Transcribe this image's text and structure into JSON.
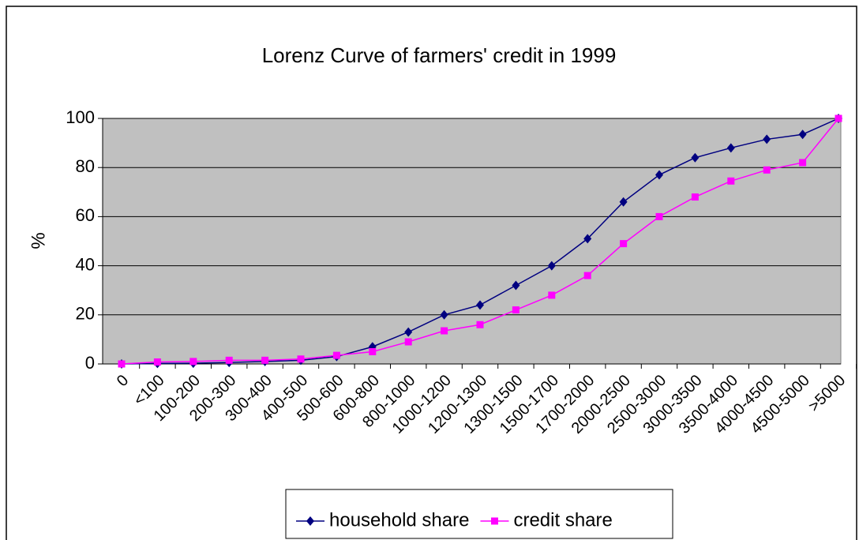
{
  "chart_data": {
    "type": "line",
    "title": "Lorenz Curve of farmers' credit in 1999",
    "y_label": "%",
    "categories": [
      "0",
      "<100",
      "100-200",
      "200-300",
      "300-400",
      "400-500",
      "500-600",
      "600-800",
      "800-1000",
      "1000-1200",
      "1200-1300",
      "1300-1500",
      "1500-1700",
      "1700-2000",
      "2000-2500",
      "2500-3000",
      "3000-3500",
      "3500-4000",
      "4000-4500",
      "4500-5000",
      ">5000"
    ],
    "series": [
      {
        "name": "household share",
        "color": "#000080",
        "marker": "diamond",
        "values": [
          0,
          0.2,
          0.3,
          0.6,
          1,
          1.5,
          3,
          7,
          13,
          20,
          24,
          32,
          40,
          51,
          66,
          77,
          84,
          88,
          91.5,
          93.5,
          100
        ]
      },
      {
        "name": "credit share",
        "color": "#ff00ff",
        "marker": "square",
        "values": [
          0,
          0.8,
          1,
          1.5,
          1.5,
          2,
          3.5,
          5,
          9,
          13.5,
          16,
          22,
          28,
          36,
          49,
          60,
          68,
          74.5,
          79,
          82,
          100
        ]
      }
    ],
    "ylim": [
      0,
      100
    ],
    "yticks": [
      0,
      20,
      40,
      60,
      80,
      100
    ],
    "grid": true,
    "legend": "bottom"
  }
}
